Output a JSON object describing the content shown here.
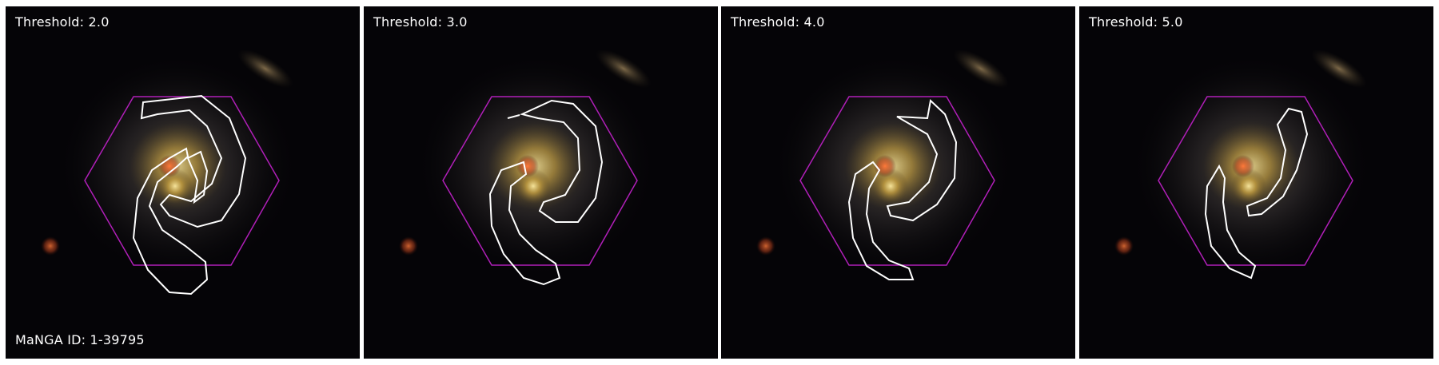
{
  "panels": [
    {
      "label": "Threshold: 2.0"
    },
    {
      "label": "Threshold: 3.0"
    },
    {
      "label": "Threshold: 4.0"
    },
    {
      "label": "Threshold: 5.0"
    }
  ],
  "galaxy_id": "MaNGA ID: 1-39795",
  "colors": {
    "background": "#050407",
    "hexagon": "#b01fb8",
    "contour": "#ffffff",
    "bulge": "#e8c070",
    "foreground_star": "#e05a2a"
  }
}
